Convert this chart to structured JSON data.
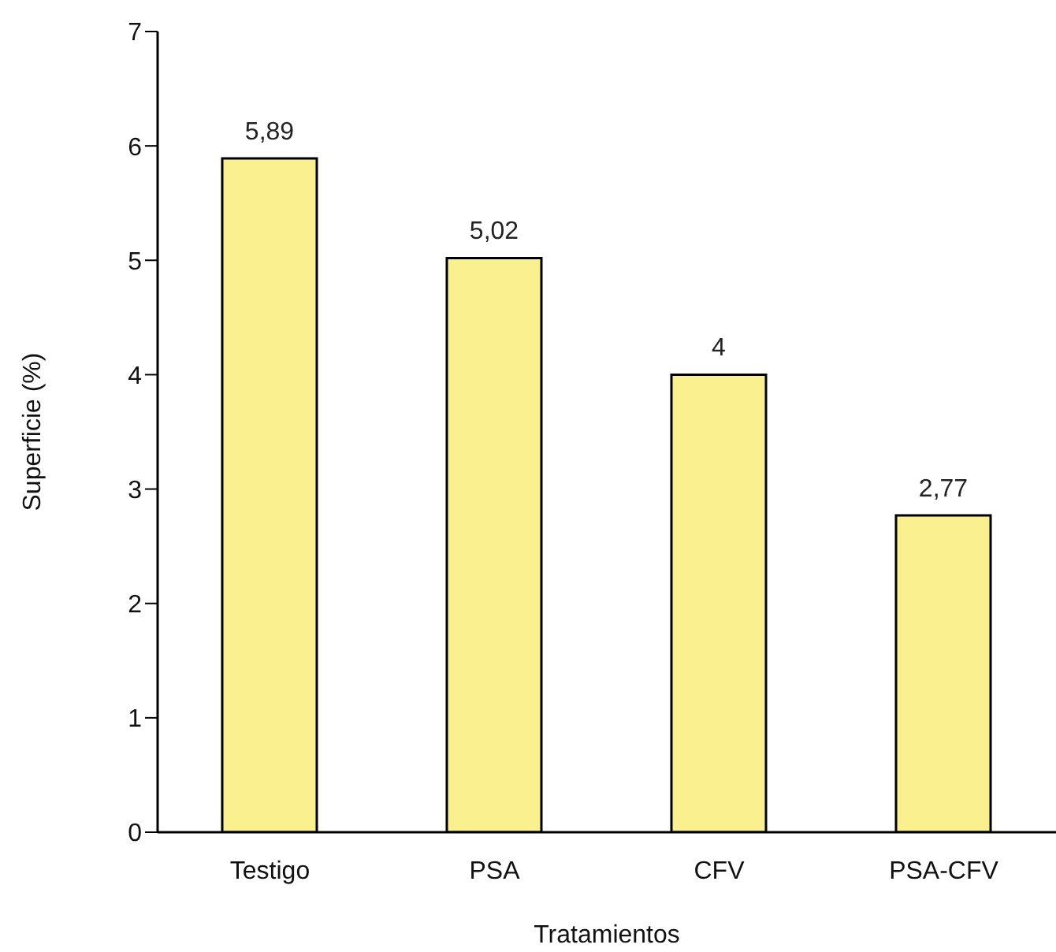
{
  "chart_data": {
    "type": "bar",
    "xlabel": "Tratamientos",
    "ylabel": "Superficie (%)",
    "categories": [
      "Testigo",
      "PSA",
      "CFV",
      "PSA-CFV"
    ],
    "values": [
      5.89,
      5.02,
      4,
      2.77
    ],
    "value_labels": [
      "5,89",
      "5,02",
      "4",
      "2,77"
    ],
    "color": "#faf08f",
    "ylim": [
      0,
      7
    ],
    "yticks": [
      0,
      1,
      2,
      3,
      4,
      5,
      6,
      7
    ]
  }
}
